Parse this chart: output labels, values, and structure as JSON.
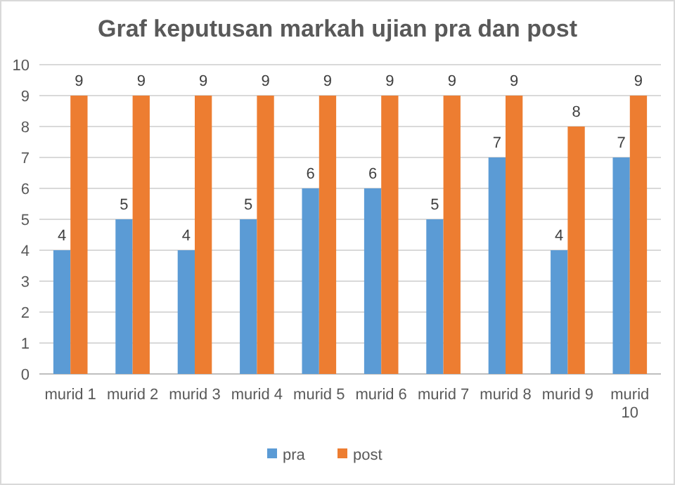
{
  "chart_data": {
    "type": "bar",
    "title": "Graf keputusan markah ujian pra dan post",
    "categories": [
      "murid 1",
      "murid 2",
      "murid 3",
      "murid 4",
      "murid 5",
      "murid 6",
      "murid 7",
      "murid 8",
      "murid 9",
      "murid 10"
    ],
    "series": [
      {
        "name": "pra",
        "color": "#5b9bd5",
        "values": [
          4,
          5,
          4,
          5,
          6,
          6,
          5,
          7,
          4,
          7
        ]
      },
      {
        "name": "post",
        "color": "#ed7d31",
        "values": [
          9,
          9,
          9,
          9,
          9,
          9,
          9,
          9,
          8,
          9
        ]
      }
    ],
    "ylim": [
      0,
      10
    ],
    "yticks": [
      0,
      1,
      2,
      3,
      4,
      5,
      6,
      7,
      8,
      9,
      10
    ],
    "grid": "y",
    "legend": "bottom",
    "data_labels": true
  }
}
